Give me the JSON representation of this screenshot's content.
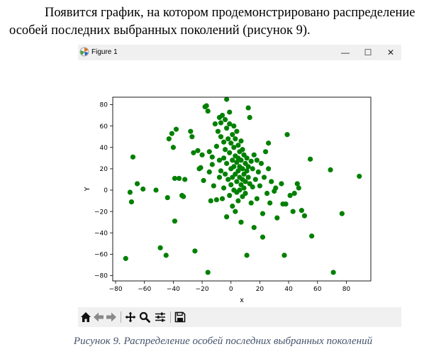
{
  "document": {
    "paragraph": "Появится график, на котором продемонстрировано распределение особей последних выбранных поколений (рисунок 9).",
    "caption": "Рисунок 9. Распределение особей последних выбранных поколений"
  },
  "window": {
    "title": "Figure 1",
    "minimize_glyph": "—",
    "maximize_glyph": "☐",
    "close_glyph": "✕"
  },
  "toolbar": {
    "items": [
      "home-icon",
      "back-icon",
      "forward-icon",
      "pan-icon",
      "zoom-icon",
      "configure-subplots-icon",
      "save-icon"
    ]
  },
  "chart_data": {
    "type": "scatter",
    "title": "",
    "xlabel": "x",
    "ylabel": "Y",
    "xlim": [
      -82,
      97
    ],
    "ylim": [
      -85,
      87
    ],
    "xticks": [
      -80,
      -60,
      -40,
      -20,
      0,
      20,
      40,
      60,
      80
    ],
    "yticks": [
      -80,
      -60,
      -40,
      -20,
      0,
      20,
      40,
      60,
      80
    ],
    "grid": false,
    "color": "#008000",
    "series": [
      {
        "points": [
          [
            -73,
            -64
          ],
          [
            -70,
            -2
          ],
          [
            -69,
            -11
          ],
          [
            -68,
            31
          ],
          [
            -65,
            6
          ],
          [
            -61,
            1
          ],
          [
            -52,
            0
          ],
          [
            -49,
            -54
          ],
          [
            -45,
            -61
          ],
          [
            -44,
            -7
          ],
          [
            -43,
            48
          ],
          [
            -41,
            53
          ],
          [
            -40,
            40
          ],
          [
            -39,
            11
          ],
          [
            -39,
            -29
          ],
          [
            -38,
            57
          ],
          [
            -36,
            11
          ],
          [
            -34,
            -5
          ],
          [
            -33,
            -6
          ],
          [
            -32,
            10
          ],
          [
            -28,
            55
          ],
          [
            -27,
            50
          ],
          [
            -26,
            35
          ],
          [
            -25,
            -57
          ],
          [
            -23,
            37
          ],
          [
            -22,
            20
          ],
          [
            -21,
            21
          ],
          [
            -20,
            33
          ],
          [
            -19,
            9
          ],
          [
            -18,
            78
          ],
          [
            -17,
            79
          ],
          [
            -16,
            -77
          ],
          [
            -16,
            74
          ],
          [
            -15,
            36
          ],
          [
            -15,
            17
          ],
          [
            -14,
            -10
          ],
          [
            -13,
            31
          ],
          [
            -13,
            24
          ],
          [
            -12,
            4
          ],
          [
            -11,
            62
          ],
          [
            -10,
            41
          ],
          [
            -10,
            -9
          ],
          [
            -9,
            55
          ],
          [
            -8,
            68
          ],
          [
            -8,
            28
          ],
          [
            -8,
            12
          ],
          [
            -7,
            63
          ],
          [
            -7,
            50
          ],
          [
            -7,
            18
          ],
          [
            -6,
            -8
          ],
          [
            -6,
            70
          ],
          [
            -5,
            45
          ],
          [
            -5,
            30
          ],
          [
            -5,
            2
          ],
          [
            -4,
            66
          ],
          [
            -4,
            38
          ],
          [
            -4,
            15
          ],
          [
            -3,
            85
          ],
          [
            -3,
            58
          ],
          [
            -3,
            25
          ],
          [
            -3,
            -25
          ],
          [
            -2,
            48
          ],
          [
            -2,
            10
          ],
          [
            -1,
            62
          ],
          [
            -1,
            73
          ],
          [
            -1,
            35
          ],
          [
            -1,
            -5
          ],
          [
            0,
            44
          ],
          [
            0,
            20
          ],
          [
            0,
            5
          ],
          [
            1,
            28
          ],
          [
            1,
            52
          ],
          [
            1,
            12
          ],
          [
            1,
            -15
          ],
          [
            2,
            40
          ],
          [
            2,
            60
          ],
          [
            2,
            22
          ],
          [
            2,
            0
          ],
          [
            3,
            48
          ],
          [
            3,
            32
          ],
          [
            3,
            15
          ],
          [
            3,
            -20
          ],
          [
            4,
            55
          ],
          [
            4,
            26
          ],
          [
            4,
            8
          ],
          [
            4,
            -2
          ],
          [
            5,
            42
          ],
          [
            5,
            18
          ],
          [
            5,
            30
          ],
          [
            5,
            -10
          ],
          [
            6,
            36
          ],
          [
            6,
            12
          ],
          [
            6,
            22
          ],
          [
            6,
            0
          ],
          [
            7,
            46
          ],
          [
            7,
            28
          ],
          [
            7,
            5
          ],
          [
            7,
            -30
          ],
          [
            8,
            38
          ],
          [
            8,
            20
          ],
          [
            8,
            10
          ],
          [
            8,
            -6
          ],
          [
            9,
            33
          ],
          [
            9,
            15
          ],
          [
            9,
            2
          ],
          [
            10,
            25
          ],
          [
            10,
            8
          ],
          [
            10,
            -3
          ],
          [
            11,
            30
          ],
          [
            11,
            18
          ],
          [
            11,
            -61
          ],
          [
            12,
            77
          ],
          [
            12,
            22
          ],
          [
            12,
            12
          ],
          [
            13,
            68
          ],
          [
            13,
            6
          ],
          [
            14,
            27
          ],
          [
            14,
            -12
          ],
          [
            15,
            20
          ],
          [
            15,
            3
          ],
          [
            16,
            33
          ],
          [
            16,
            -35
          ],
          [
            17,
            10
          ],
          [
            18,
            28
          ],
          [
            18,
            -8
          ],
          [
            19,
            17
          ],
          [
            20,
            4
          ],
          [
            21,
            25
          ],
          [
            22,
            -44
          ],
          [
            22,
            -22
          ],
          [
            23,
            12
          ],
          [
            24,
            36
          ],
          [
            25,
            -3
          ],
          [
            26,
            44
          ],
          [
            26,
            20
          ],
          [
            27,
            -12
          ],
          [
            28,
            8
          ],
          [
            30,
            -1
          ],
          [
            31,
            2
          ],
          [
            32,
            -26
          ],
          [
            35,
            6
          ],
          [
            36,
            -13
          ],
          [
            37,
            -61
          ],
          [
            38,
            -13
          ],
          [
            39,
            52
          ],
          [
            41,
            -5
          ],
          [
            43,
            -20
          ],
          [
            44,
            -3
          ],
          [
            46,
            6
          ],
          [
            47,
            2
          ],
          [
            49,
            -19
          ],
          [
            51,
            -24
          ],
          [
            55,
            29
          ],
          [
            56,
            -43
          ],
          [
            69,
            19
          ],
          [
            71,
            -77
          ],
          [
            77,
            -22
          ],
          [
            89,
            13
          ]
        ]
      }
    ]
  }
}
